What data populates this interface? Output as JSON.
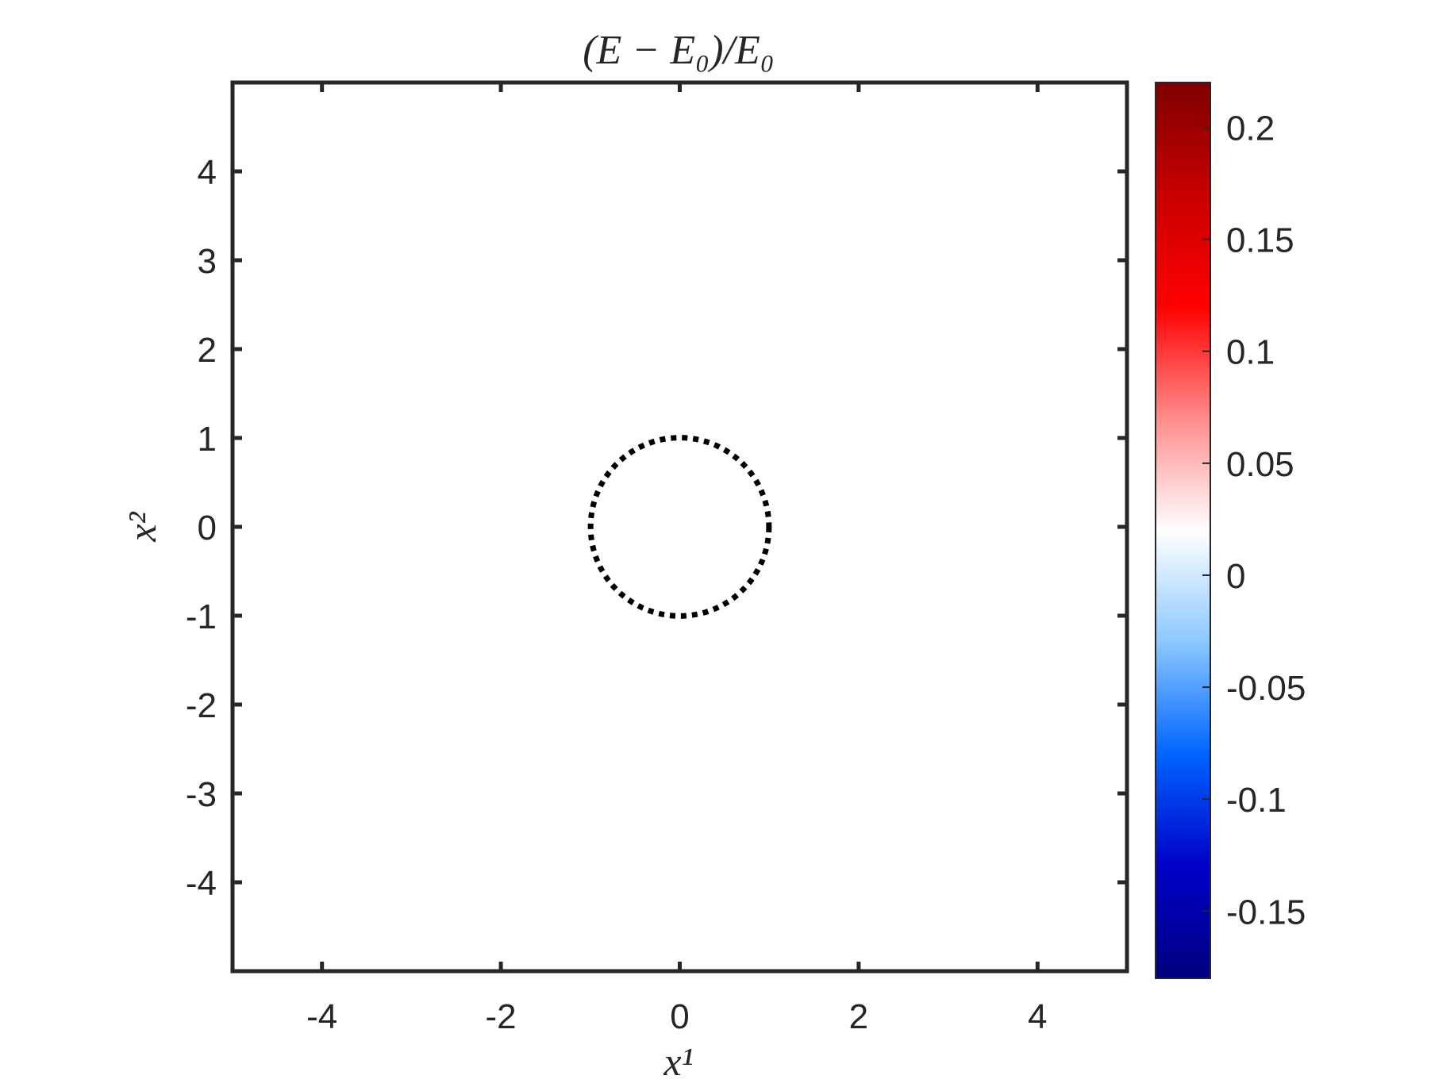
{
  "chart_data": {
    "type": "heatmap",
    "title": "(E − E₀)/E₀",
    "xlabel": "x¹",
    "ylabel": "x²",
    "xlim": [
      -5,
      5
    ],
    "ylim": [
      -5,
      5
    ],
    "xticks": [
      -4,
      -2,
      0,
      2,
      4
    ],
    "xtick_labels": [
      "-4",
      "-2",
      "0",
      "2",
      "4"
    ],
    "yticks": [
      4,
      3,
      2,
      1,
      0,
      -1,
      -2,
      -3,
      -4
    ],
    "ytick_labels": [
      "4",
      "3",
      "2",
      "1",
      "0",
      "-1",
      "-2",
      "-3",
      "-4"
    ],
    "field_value": 0,
    "overlay": {
      "shape": "circle",
      "center": [
        0,
        0
      ],
      "radius": 1,
      "line_style": "dotted",
      "color": "#000000"
    },
    "colorbar": {
      "clim": [
        -0.18,
        0.22
      ],
      "ticks": [
        0.2,
        0.15,
        0.1,
        0.05,
        0,
        -0.05,
        -0.1,
        -0.15
      ],
      "tick_labels": [
        "0.2",
        "0.15",
        "0.1",
        "0.05",
        "0",
        "-0.05",
        "-0.1",
        "-0.15"
      ],
      "colormap": [
        "#00007f",
        "#0000c8",
        "#0064ff",
        "#8cc8ff",
        "#ffffff",
        "#ff8c8c",
        "#ff0000",
        "#c80000",
        "#7f0000"
      ]
    },
    "grid": false
  }
}
